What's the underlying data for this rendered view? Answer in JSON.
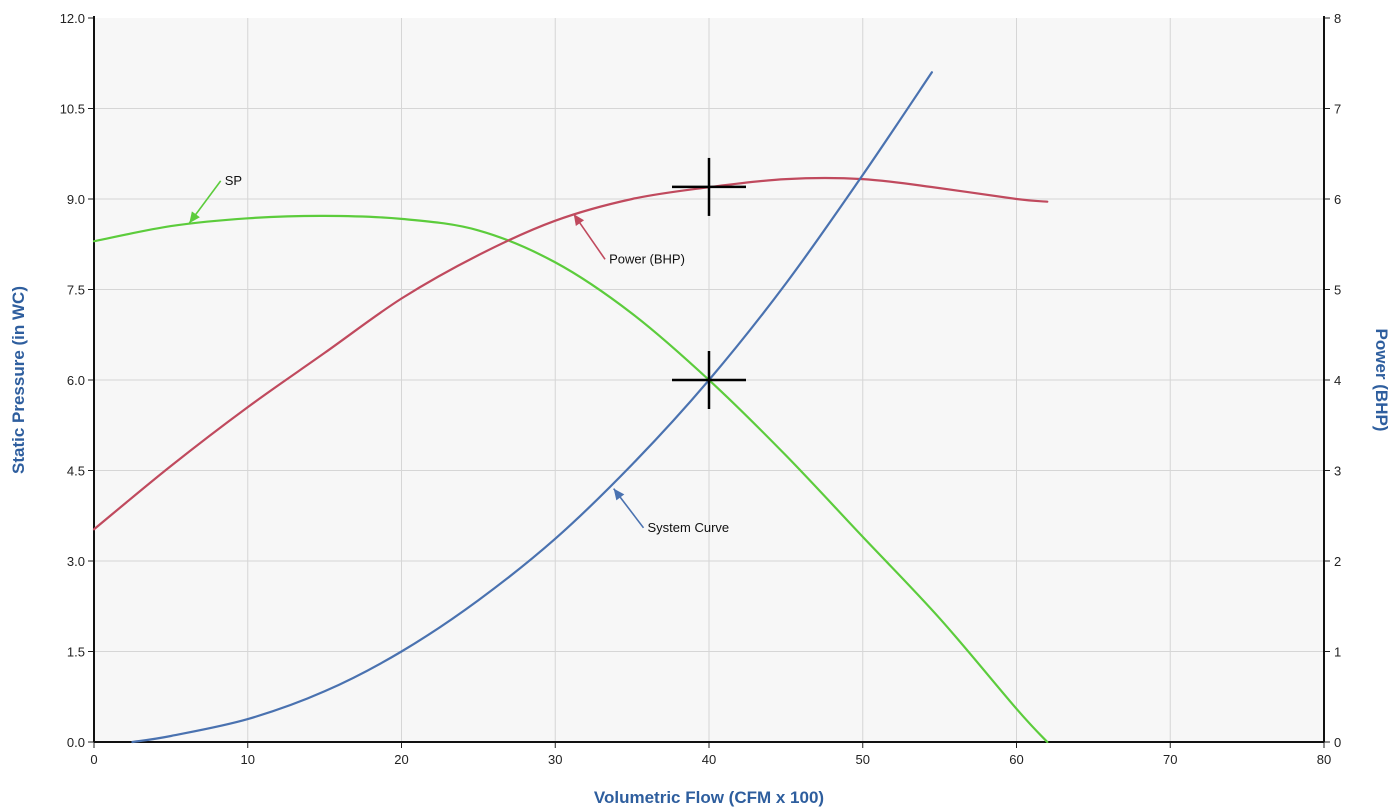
{
  "chart_data": {
    "type": "line",
    "title": "",
    "xlabel": "Volumetric Flow (CFM x 100)",
    "ylabel": "Static Pressure (in WC)",
    "y2label": "Power (BHP)",
    "xlim": [
      0,
      80
    ],
    "ylim": [
      0,
      12
    ],
    "y2lim": [
      0,
      8
    ],
    "x_ticks": [
      "0",
      "10",
      "20",
      "30",
      "40",
      "50",
      "60",
      "70",
      "80"
    ],
    "y_ticks": [
      "0.0",
      "1.5",
      "3.0",
      "4.5",
      "6.0",
      "7.5",
      "9.0",
      "10.5",
      "12.0"
    ],
    "y2_ticks": [
      "0",
      "1",
      "2",
      "3",
      "4",
      "5",
      "6",
      "7",
      "8"
    ],
    "grid": true,
    "series": [
      {
        "id": "sp",
        "axis": "left",
        "color": "#5ccc3c",
        "x": [
          0,
          5,
          10,
          15,
          20,
          25,
          30,
          35,
          40,
          45,
          50,
          55,
          60,
          62
        ],
        "y": [
          8.3,
          8.55,
          8.68,
          8.72,
          8.67,
          8.48,
          7.95,
          7.1,
          6.0,
          4.75,
          3.4,
          2.05,
          0.55,
          0.0
        ]
      },
      {
        "id": "power",
        "axis": "right",
        "color": "#c04a5e",
        "x": [
          0,
          5,
          10,
          15,
          20,
          25,
          30,
          35,
          40,
          45,
          50,
          55,
          60,
          62
        ],
        "y": [
          2.35,
          3.05,
          3.7,
          4.3,
          4.9,
          5.38,
          5.76,
          6.0,
          6.13,
          6.22,
          6.22,
          6.12,
          6.0,
          5.97
        ]
      },
      {
        "id": "system",
        "axis": "left",
        "color": "#4a72b0",
        "x": [
          2.5,
          5,
          10,
          15,
          20,
          25,
          30,
          35,
          40,
          45,
          50,
          54.5
        ],
        "y": [
          0.0,
          0.1,
          0.38,
          0.84,
          1.5,
          2.35,
          3.37,
          4.6,
          6.0,
          7.6,
          9.4,
          11.1
        ]
      }
    ],
    "annotations": [
      {
        "label": "SP",
        "series": "sp",
        "text_x": 8.5,
        "text_y": 9.3,
        "arrow_x": 6.2,
        "arrow_y": 8.6
      },
      {
        "label": "Power (BHP)",
        "series": "power",
        "text_x": 33.5,
        "text_y": 8.0,
        "arrow_x": 31.2,
        "arrow_y": 8.75
      },
      {
        "label": "System Curve",
        "series": "system",
        "text_x": 36,
        "text_y": 3.55,
        "arrow_x": 33.8,
        "arrow_y": 4.2
      }
    ],
    "operating_points": [
      {
        "x": 40,
        "y": 9.2
      },
      {
        "x": 40,
        "y": 6.0
      }
    ]
  }
}
